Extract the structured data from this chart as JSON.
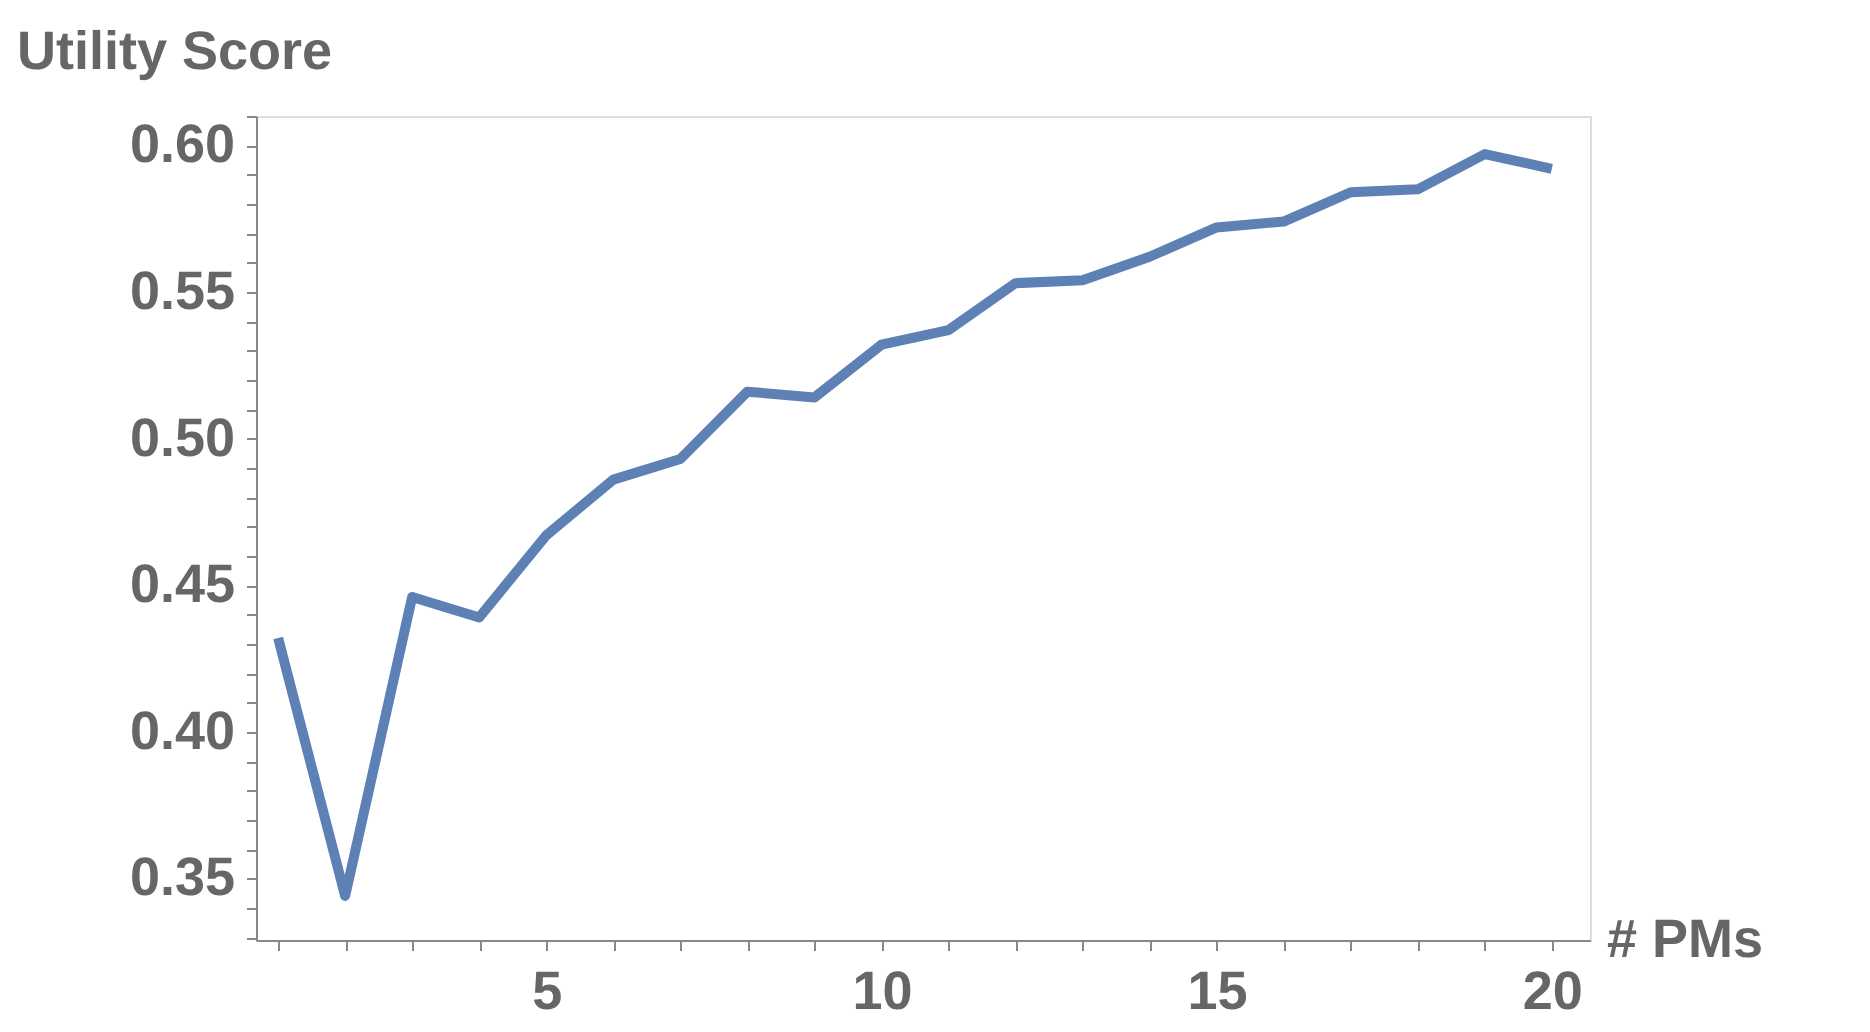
{
  "chart_data": {
    "type": "line",
    "xlabel": "# PMs",
    "ylabel": "Utility Score",
    "x": [
      1,
      2,
      3,
      4,
      5,
      6,
      7,
      8,
      9,
      10,
      11,
      12,
      13,
      14,
      15,
      16,
      17,
      18,
      19,
      20
    ],
    "series": [
      {
        "color": "#5e81b5",
        "values": [
          0.432,
          0.344,
          0.446,
          0.439,
          0.467,
          0.486,
          0.493,
          0.516,
          0.514,
          0.532,
          0.537,
          0.553,
          0.554,
          0.562,
          0.572,
          0.574,
          0.584,
          0.585,
          0.597,
          0.592
        ]
      }
    ],
    "xlim": [
      0.67,
      20.57
    ],
    "ylim": [
      0.329,
      0.61
    ],
    "xticks": [
      {
        "value": 1,
        "label": null
      },
      {
        "value": 2,
        "label": null
      },
      {
        "value": 3,
        "label": null
      },
      {
        "value": 4,
        "label": null
      },
      5,
      {
        "value": 6,
        "label": null
      },
      {
        "value": 7,
        "label": null
      },
      {
        "value": 8,
        "label": null
      },
      {
        "value": 9,
        "label": null
      },
      10,
      {
        "value": 11,
        "label": null
      },
      {
        "value": 12,
        "label": null
      },
      {
        "value": 13,
        "label": null
      },
      {
        "value": 14,
        "label": null
      },
      15,
      {
        "value": 16,
        "label": null
      },
      {
        "value": 17,
        "label": null
      },
      {
        "value": 18,
        "label": null
      },
      {
        "value": 19,
        "label": null
      },
      20
    ],
    "yticks": [
      {
        "value": 0.33,
        "label": null
      },
      {
        "value": 0.34,
        "label": null
      },
      {
        "value": 0.35,
        "label": "0.35"
      },
      {
        "value": 0.36,
        "label": null
      },
      {
        "value": 0.37,
        "label": null
      },
      {
        "value": 0.38,
        "label": null
      },
      {
        "value": 0.39,
        "label": null
      },
      {
        "value": 0.4,
        "label": "0.40"
      },
      {
        "value": 0.41,
        "label": null
      },
      {
        "value": 0.42,
        "label": null
      },
      {
        "value": 0.43,
        "label": null
      },
      {
        "value": 0.44,
        "label": null
      },
      {
        "value": 0.45,
        "label": "0.45"
      },
      {
        "value": 0.46,
        "label": null
      },
      {
        "value": 0.47,
        "label": null
      },
      {
        "value": 0.48,
        "label": null
      },
      {
        "value": 0.49,
        "label": null
      },
      {
        "value": 0.5,
        "label": "0.50"
      },
      {
        "value": 0.51,
        "label": null
      },
      {
        "value": 0.52,
        "label": null
      },
      {
        "value": 0.53,
        "label": null
      },
      {
        "value": 0.54,
        "label": null
      },
      {
        "value": 0.55,
        "label": "0.55"
      },
      {
        "value": 0.56,
        "label": null
      },
      {
        "value": 0.57,
        "label": null
      },
      {
        "value": 0.58,
        "label": null
      },
      {
        "value": 0.59,
        "label": null
      },
      {
        "value": 0.6,
        "label": "0.60"
      },
      {
        "value": 0.61,
        "label": null
      }
    ],
    "grid": false,
    "marker": "none",
    "line_style": "solid"
  }
}
